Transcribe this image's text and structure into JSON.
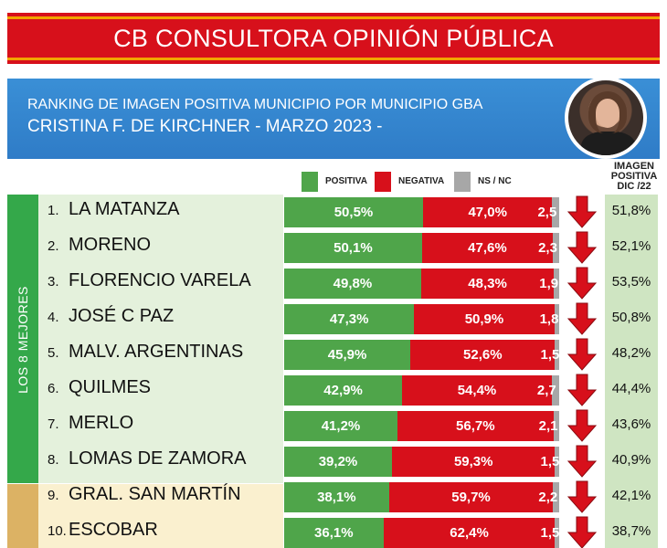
{
  "header": {
    "title": "CB CONSULTORA OPINIÓN PÚBLICA",
    "subtitle_line1": "RANKING DE IMAGEN POSITIVA MUNICIPIO POR MUNICIPIO GBA",
    "subtitle_line2": "CRISTINA F. DE KIRCHNER - MARZO 2023 -"
  },
  "legend": {
    "positiva": "POSITIVA",
    "negativa": "NEGATIVA",
    "nsnc": "NS / NC"
  },
  "prior_header": [
    "IMAGEN",
    "POSITIVA",
    "DIC /22"
  ],
  "group_label": "LOS 8 MEJORES",
  "colors": {
    "positiva": "#4fa54a",
    "negativa": "#d7101b",
    "nsnc": "#a7a7a7",
    "arrow": "#d7101b"
  },
  "chart_data": {
    "type": "bar",
    "stacked": true,
    "orientation": "horizontal",
    "categories": [
      "LA MATANZA",
      "MORENO",
      "FLORENCIO VARELA",
      "JOSÉ C PAZ",
      "MALV. ARGENTINAS",
      "QUILMES",
      "MERLO",
      "LOMAS DE ZAMORA",
      "GRAL. SAN MARTÍN",
      "ESCOBAR"
    ],
    "ranks": [
      "1.",
      "2.",
      "3.",
      "4.",
      "5.",
      "6.",
      "7.",
      "8.",
      "9.",
      "10."
    ],
    "series": [
      {
        "name": "POSITIVA",
        "values": [
          50.5,
          50.1,
          49.8,
          47.3,
          45.9,
          42.9,
          41.2,
          39.2,
          38.1,
          36.1
        ],
        "labels": [
          "50,5%",
          "50,1%",
          "49,8%",
          "47,3%",
          "45,9%",
          "42,9%",
          "41,2%",
          "39,2%",
          "38,1%",
          "36,1%"
        ]
      },
      {
        "name": "NEGATIVA",
        "values": [
          47.0,
          47.6,
          48.3,
          50.9,
          52.6,
          54.4,
          56.7,
          59.3,
          59.7,
          62.4
        ],
        "labels": [
          "47,0%",
          "47,6%",
          "48,3%",
          "50,9%",
          "52,6%",
          "54,4%",
          "56,7%",
          "59,3%",
          "59,7%",
          "62,4%"
        ]
      },
      {
        "name": "NS / NC",
        "values": [
          2.5,
          2.3,
          1.9,
          1.8,
          1.5,
          2.7,
          2.1,
          1.5,
          2.2,
          1.5
        ],
        "labels": [
          "2,5",
          "2,3",
          "1,9",
          "1,8",
          "1,5",
          "2,7",
          "2,1",
          "1,5",
          "2,2",
          "1,5"
        ]
      }
    ],
    "prior": {
      "name": "IMAGEN POSITIVA DIC /22",
      "labels": [
        "51,8%",
        "52,1%",
        "53,5%",
        "50,8%",
        "48,2%",
        "44,4%",
        "43,6%",
        "40,9%",
        "42,1%",
        "38,7%"
      ]
    },
    "trend": [
      "down",
      "down",
      "down",
      "down",
      "down",
      "down",
      "down",
      "down",
      "down",
      "down"
    ],
    "xlim": [
      0,
      100
    ]
  }
}
